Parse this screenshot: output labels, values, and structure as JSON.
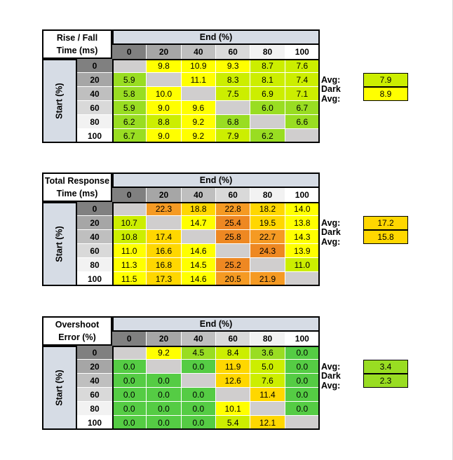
{
  "colors": {
    "header_blue": "#d6dce5",
    "col_header_shades": [
      "#808080",
      "#a6a6a6",
      "#bfbfbf",
      "#d9d9d9",
      "#f2f2f2",
      "#ffffff"
    ],
    "row_header_shades": [
      "#808080",
      "#a6a6a6",
      "#bfbfbf",
      "#d9d9d9",
      "#f2f2f2",
      "#ffffff"
    ],
    "diagonal": "#d0cece",
    "yellow": "#ffff00",
    "yellow_green": "#ccee00",
    "light_green": "#99dd22",
    "green": "#55cc44",
    "amber": "#ffd700",
    "orange": "#f59a23",
    "dark_orange": "#ee8822"
  },
  "tables": [
    {
      "title_lines": [
        "Rise / Fall",
        "Time (ms)"
      ],
      "end_label": "End (%)",
      "start_label": "Start (%)",
      "columns": [
        "0",
        "20",
        "40",
        "60",
        "80",
        "100"
      ],
      "rows": [
        "0",
        "20",
        "40",
        "60",
        "80",
        "100"
      ],
      "cells": [
        [
          "",
          "9.8",
          "10.9",
          "9.3",
          "8.7",
          "7.6"
        ],
        [
          "5.9",
          "",
          "11.1",
          "8.3",
          "8.1",
          "7.4"
        ],
        [
          "5.8",
          "10.0",
          "",
          "7.5",
          "6.9",
          "7.1"
        ],
        [
          "5.9",
          "9.0",
          "9.6",
          "",
          "6.0",
          "6.7"
        ],
        [
          "6.2",
          "8.8",
          "9.2",
          "6.8",
          "",
          "6.6"
        ],
        [
          "6.7",
          "9.0",
          "9.2",
          "7.9",
          "6.2",
          ""
        ]
      ],
      "cell_colors": [
        [
          "diagonal",
          "yellow",
          "yellow",
          "yellow",
          "yellow_green",
          "yellow_green"
        ],
        [
          "light_green",
          "diagonal",
          "yellow",
          "yellow_green",
          "yellow_green",
          "yellow_green"
        ],
        [
          "light_green",
          "yellow",
          "diagonal",
          "yellow_green",
          "yellow_green",
          "yellow_green"
        ],
        [
          "light_green",
          "yellow",
          "yellow",
          "diagonal",
          "light_green",
          "light_green"
        ],
        [
          "light_green",
          "yellow_green",
          "yellow",
          "light_green",
          "diagonal",
          "light_green"
        ],
        [
          "light_green",
          "yellow",
          "yellow",
          "yellow_green",
          "light_green",
          "diagonal"
        ]
      ],
      "avg_label": "Avg:",
      "avg_value": "7.9",
      "avg_color": "yellow_green",
      "dark_avg_label": "Dark Avg:",
      "dark_avg_value": "8.9",
      "dark_avg_color": "yellow"
    },
    {
      "title_lines": [
        "Total Response",
        "Time (ms)"
      ],
      "end_label": "End (%)",
      "start_label": "Start (%)",
      "columns": [
        "0",
        "20",
        "40",
        "60",
        "80",
        "100"
      ],
      "rows": [
        "0",
        "20",
        "40",
        "60",
        "80",
        "100"
      ],
      "cells": [
        [
          "",
          "22.3",
          "18.8",
          "22.8",
          "18.2",
          "14.0"
        ],
        [
          "10.7",
          "",
          "14.7",
          "25.4",
          "19.5",
          "13.8"
        ],
        [
          "10.8",
          "17.4",
          "",
          "25.8",
          "22.7",
          "14.3"
        ],
        [
          "11.0",
          "16.6",
          "14.6",
          "",
          "24.3",
          "13.9"
        ],
        [
          "11.3",
          "16.8",
          "14.5",
          "25.2",
          "",
          "11.0"
        ],
        [
          "11.5",
          "17.3",
          "14.6",
          "20.5",
          "21.9",
          ""
        ]
      ],
      "cell_colors": [
        [
          "diagonal",
          "orange",
          "amber",
          "orange",
          "amber",
          "yellow"
        ],
        [
          "yellow_green",
          "diagonal",
          "yellow",
          "dark_orange",
          "amber",
          "yellow"
        ],
        [
          "yellow_green",
          "amber",
          "diagonal",
          "dark_orange",
          "orange",
          "yellow"
        ],
        [
          "yellow",
          "amber",
          "yellow",
          "diagonal",
          "dark_orange",
          "yellow"
        ],
        [
          "yellow",
          "amber",
          "yellow",
          "dark_orange",
          "diagonal",
          "yellow_green"
        ],
        [
          "yellow",
          "amber",
          "yellow",
          "orange",
          "orange",
          "diagonal"
        ]
      ],
      "avg_label": "Avg:",
      "avg_value": "17.2",
      "avg_color": "amber",
      "dark_avg_label": "Dark Avg:",
      "dark_avg_value": "15.8",
      "dark_avg_color": "amber"
    },
    {
      "title_lines": [
        "Overshoot",
        "Error (%)"
      ],
      "end_label": "End (%)",
      "start_label": "Start (%)",
      "columns": [
        "0",
        "20",
        "40",
        "60",
        "80",
        "100"
      ],
      "rows": [
        "0",
        "20",
        "40",
        "60",
        "80",
        "100"
      ],
      "cells": [
        [
          "",
          "9.2",
          "4.5",
          "8.4",
          "3.6",
          "0.0"
        ],
        [
          "0.0",
          "",
          "0.0",
          "11.9",
          "5.0",
          "0.0"
        ],
        [
          "0.0",
          "0.0",
          "",
          "12.6",
          "7.6",
          "0.0"
        ],
        [
          "0.0",
          "0.0",
          "0.0",
          "",
          "11.4",
          "0.0"
        ],
        [
          "0.0",
          "0.0",
          "0.0",
          "10.1",
          "",
          "0.0"
        ],
        [
          "0.0",
          "0.0",
          "0.0",
          "5.4",
          "12.1",
          ""
        ]
      ],
      "cell_colors": [
        [
          "diagonal",
          "yellow",
          "light_green",
          "yellow_green",
          "light_green",
          "green"
        ],
        [
          "green",
          "diagonal",
          "green",
          "amber",
          "yellow_green",
          "green"
        ],
        [
          "green",
          "green",
          "diagonal",
          "amber",
          "yellow_green",
          "green"
        ],
        [
          "green",
          "green",
          "green",
          "diagonal",
          "amber",
          "green"
        ],
        [
          "green",
          "green",
          "green",
          "yellow",
          "diagonal",
          "green"
        ],
        [
          "green",
          "green",
          "green",
          "yellow_green",
          "amber",
          "diagonal"
        ]
      ],
      "avg_label": "Avg:",
      "avg_value": "3.4",
      "avg_color": "light_green",
      "dark_avg_label": "Dark Avg:",
      "dark_avg_value": "2.3",
      "dark_avg_color": "light_green"
    }
  ]
}
